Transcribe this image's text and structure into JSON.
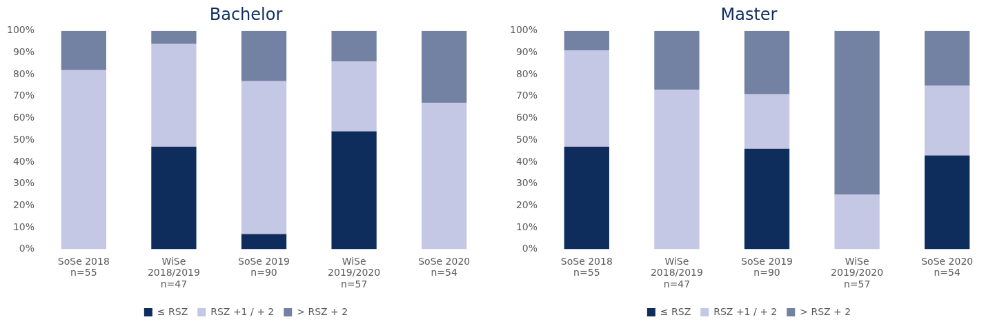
{
  "chart_data": [
    {
      "type": "bar",
      "title": "Bachelor",
      "stacked": true,
      "legend": "bottom",
      "grid": false,
      "categories": [
        "SoSe 2018\nn=55",
        "WiSe\n2018/2019\nn=47",
        "SoSe 2019\nn=90",
        "WiSe\n2019/2020\nn=57",
        "SoSe 2020\nn=54"
      ],
      "ylim": [
        0,
        100
      ],
      "yticks": [
        {
          "value": 0,
          "label": "0%"
        },
        {
          "value": 10,
          "label": "10%"
        },
        {
          "value": 20,
          "label": "20%"
        },
        {
          "value": 30,
          "label": "30%"
        },
        {
          "value": 40,
          "label": "40%"
        },
        {
          "value": 50,
          "label": "50%"
        },
        {
          "value": 60,
          "label": "60%"
        },
        {
          "value": 70,
          "label": "70%"
        },
        {
          "value": 80,
          "label": "80%"
        },
        {
          "value": 90,
          "label": "90%"
        },
        {
          "value": 100,
          "label": "100%"
        }
      ],
      "series": [
        {
          "name": "≤ RSZ",
          "color": "#0f2d5c",
          "values": [
            0,
            47,
            7,
            54,
            0
          ]
        },
        {
          "name": "RSZ +1 / + 2",
          "color": "#c5c8e5",
          "values": [
            82,
            47,
            70,
            32,
            67
          ]
        },
        {
          "name": "> RSZ + 2",
          "color": "#7381a3",
          "values": [
            18,
            6,
            23,
            14,
            33
          ]
        }
      ]
    },
    {
      "type": "bar",
      "title": "Master",
      "stacked": true,
      "legend": "bottom",
      "grid": false,
      "categories": [
        "SoSe 2018\nn=55",
        "WiSe\n2018/2019\nn=47",
        "SoSe 2019\nn=90",
        "WiSe\n2019/2020\nn=57",
        "SoSe 2020\nn=54"
      ],
      "ylim": [
        0,
        100
      ],
      "yticks": [
        {
          "value": 0,
          "label": "0%"
        },
        {
          "value": 10,
          "label": "10%"
        },
        {
          "value": 20,
          "label": "20%"
        },
        {
          "value": 30,
          "label": "30%"
        },
        {
          "value": 40,
          "label": "40%"
        },
        {
          "value": 50,
          "label": "50%"
        },
        {
          "value": 60,
          "label": "60%"
        },
        {
          "value": 70,
          "label": "70%"
        },
        {
          "value": 80,
          "label": "80%"
        },
        {
          "value": 90,
          "label": "90%"
        },
        {
          "value": 100,
          "label": "100%"
        }
      ],
      "series": [
        {
          "name": "≤ RSZ",
          "color": "#0f2d5c",
          "values": [
            47,
            0,
            46,
            0,
            43
          ]
        },
        {
          "name": "RSZ +1 / + 2",
          "color": "#c5c8e5",
          "values": [
            44,
            73,
            25,
            25,
            32
          ]
        },
        {
          "name": "> RSZ + 2",
          "color": "#7381a3",
          "values": [
            9,
            27,
            29,
            75,
            25
          ]
        }
      ]
    }
  ]
}
